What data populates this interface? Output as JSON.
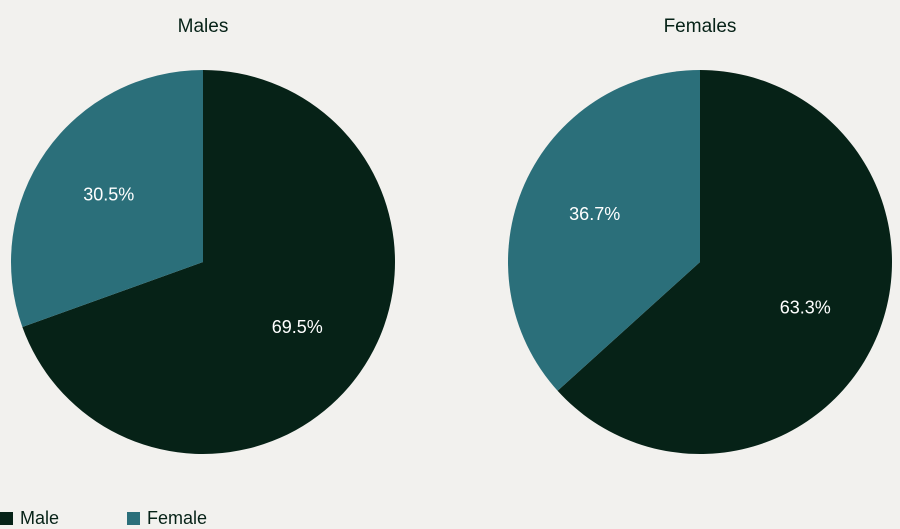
{
  "chart_data": [
    {
      "type": "pie",
      "title": "Males",
      "categories": [
        "Male",
        "Female"
      ],
      "values": [
        69.5,
        30.5
      ],
      "value_labels": [
        "69.5%",
        "30.5%"
      ],
      "colors": [
        "#062217",
        "#2b6f7a"
      ],
      "legend": "bottom-left"
    },
    {
      "type": "pie",
      "title": "Females",
      "categories": [
        "Male",
        "Female"
      ],
      "values": [
        63.3,
        36.7
      ],
      "value_labels": [
        "63.3%",
        "36.7%"
      ],
      "colors": [
        "#062217",
        "#2b6f7a"
      ]
    }
  ]
}
